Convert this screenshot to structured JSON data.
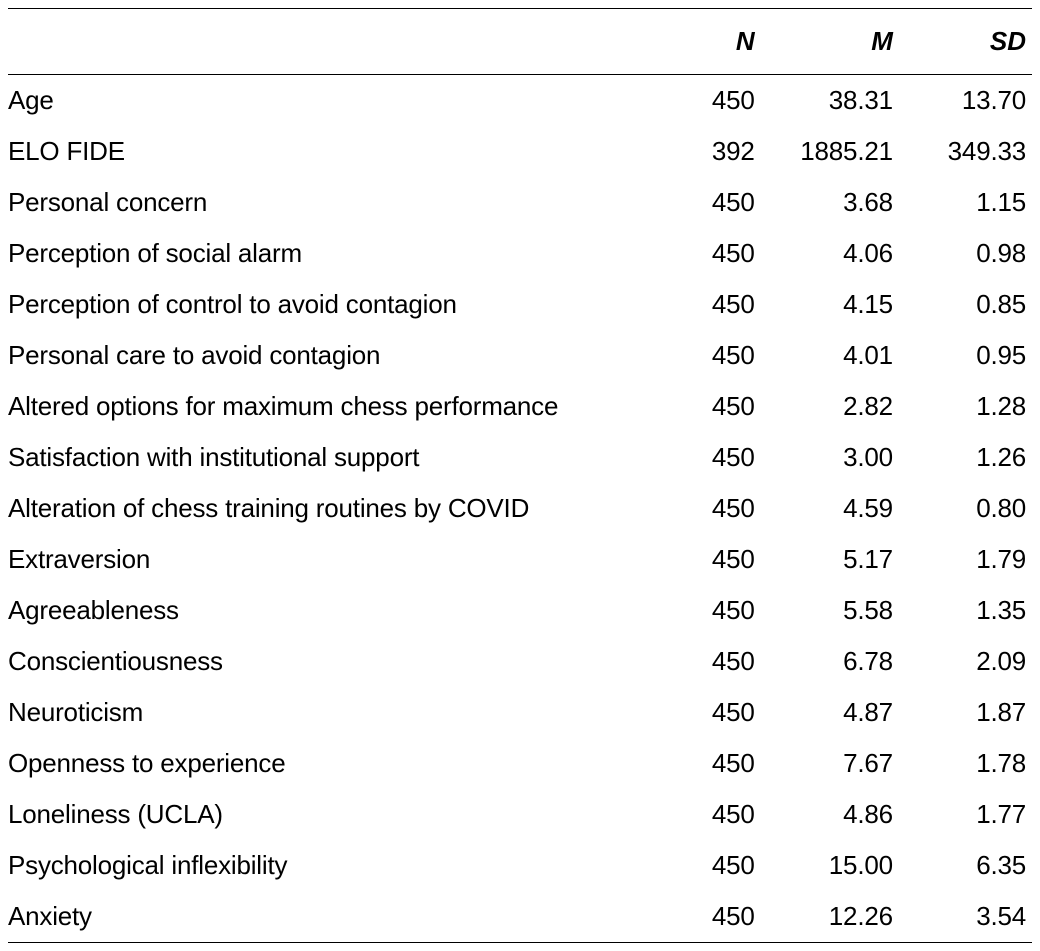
{
  "table": {
    "type": "table",
    "columns": {
      "label": "",
      "n": "N",
      "m": "M",
      "sd": "SD"
    },
    "column_widths_pct": {
      "label": 62.5,
      "n": 11,
      "m": 13.5,
      "sd": 13
    },
    "header_font": {
      "style": "italic",
      "weight": 600,
      "size_pt": 20
    },
    "cell_font": {
      "weight": 300,
      "size_pt": 20
    },
    "border_color": "#000000",
    "background_color": "#ffffff",
    "text_color": "#000000",
    "rows": [
      {
        "label": "Age",
        "n": "450",
        "m": "38.31",
        "sd": "13.70"
      },
      {
        "label": "ELO FIDE",
        "n": "392",
        "m": "1885.21",
        "sd": "349.33"
      },
      {
        "label": "Personal concern",
        "n": "450",
        "m": "3.68",
        "sd": "1.15"
      },
      {
        "label": "Perception of social alarm",
        "n": "450",
        "m": "4.06",
        "sd": "0.98"
      },
      {
        "label": "Perception of control to avoid contagion",
        "n": "450",
        "m": "4.15",
        "sd": "0.85"
      },
      {
        "label": "Personal care to avoid contagion",
        "n": "450",
        "m": "4.01",
        "sd": "0.95"
      },
      {
        "label": "Altered options for maximum chess performance",
        "n": "450",
        "m": "2.82",
        "sd": "1.28"
      },
      {
        "label": "Satisfaction with institutional support",
        "n": "450",
        "m": "3.00",
        "sd": "1.26"
      },
      {
        "label": "Alteration of chess training routines by COVID",
        "n": "450",
        "m": "4.59",
        "sd": "0.80"
      },
      {
        "label": "Extraversion",
        "n": "450",
        "m": "5.17",
        "sd": "1.79"
      },
      {
        "label": "Agreeableness",
        "n": "450",
        "m": "5.58",
        "sd": "1.35"
      },
      {
        "label": "Conscientiousness",
        "n": "450",
        "m": "6.78",
        "sd": "2.09"
      },
      {
        "label": "Neuroticism",
        "n": "450",
        "m": "4.87",
        "sd": "1.87"
      },
      {
        "label": "Openness to experience",
        "n": "450",
        "m": "7.67",
        "sd": "1.78"
      },
      {
        "label": "Loneliness (UCLA)",
        "n": "450",
        "m": "4.86",
        "sd": "1.77"
      },
      {
        "label": "Psychological inflexibility",
        "n": "450",
        "m": "15.00",
        "sd": "6.35"
      },
      {
        "label": "Anxiety",
        "n": "450",
        "m": "12.26",
        "sd": "3.54"
      }
    ]
  }
}
